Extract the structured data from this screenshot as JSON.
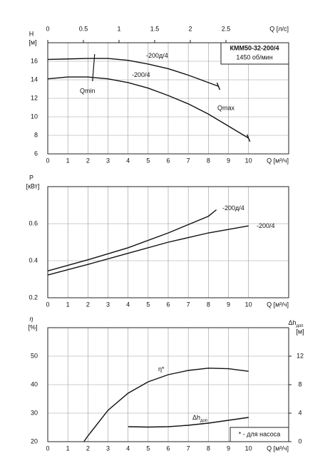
{
  "chart_data": [
    {
      "type": "line",
      "ylabel": "H",
      "yunit": "[м]",
      "xlabel": "Q [м³/ч]",
      "x2label": "Q [л/с]",
      "xlim": [
        0,
        12
      ],
      "xticks": [
        0,
        1,
        2,
        3,
        4,
        5,
        6,
        7,
        8,
        9,
        10
      ],
      "x2lim": [
        0,
        3.38
      ],
      "x2ticks": [
        0,
        0.5,
        1,
        1.5,
        2,
        2.5
      ],
      "ylim": [
        6,
        18
      ],
      "yticks": [
        6,
        8,
        10,
        12,
        14,
        16
      ],
      "grid": true,
      "model": "КММ50-32-200/4",
      "speed": "1450 об/мин",
      "markers": [
        {
          "label": "Qmin",
          "q": 2.3
        },
        {
          "label": "Qmax",
          "q": 10
        }
      ],
      "series": [
        {
          "name": "-200д/4",
          "color": "#111111",
          "x": [
            0,
            1,
            2,
            3,
            4,
            5,
            6,
            7,
            8,
            8.5
          ],
          "values": [
            16.2,
            16.25,
            16.3,
            16.3,
            16.1,
            15.7,
            15.2,
            14.5,
            13.7,
            13.3
          ]
        },
        {
          "name": "-200/4",
          "color": "#111111",
          "x": [
            0,
            1,
            2,
            3,
            4,
            5,
            6,
            7,
            8,
            9,
            10
          ],
          "values": [
            14.1,
            14.3,
            14.3,
            14.1,
            13.7,
            13.1,
            12.3,
            11.4,
            10.3,
            9.0,
            7.7
          ]
        }
      ]
    },
    {
      "type": "line",
      "ylabel": "P",
      "yunit": "[кВт]",
      "xlabel": "Q [м³/ч]",
      "xlim": [
        0,
        12
      ],
      "xticks": [
        0,
        1,
        2,
        3,
        4,
        5,
        6,
        7,
        8,
        9,
        10
      ],
      "ylim": [
        0.2,
        0.8
      ],
      "yticks": [
        0.2,
        0.4,
        0.6
      ],
      "grid": true,
      "series": [
        {
          "name": "-200д/4",
          "color": "#111111",
          "x": [
            0,
            2,
            4,
            6,
            8,
            8.4
          ],
          "values": [
            0.345,
            0.405,
            0.47,
            0.55,
            0.64,
            0.675
          ]
        },
        {
          "name": "-200/4",
          "color": "#111111",
          "x": [
            0,
            2,
            4,
            6,
            8,
            10
          ],
          "values": [
            0.323,
            0.38,
            0.44,
            0.5,
            0.55,
            0.588
          ]
        }
      ]
    },
    {
      "type": "line",
      "ylabel": "η",
      "yunit": "[%]",
      "y2label": "Δh",
      "y2label_sub": "доп",
      "y2unit": "[м]",
      "xlabel": "Q [м³/ч]",
      "xlim": [
        0,
        12
      ],
      "xticks": [
        0,
        1,
        2,
        3,
        4,
        5,
        6,
        7,
        8,
        9,
        10
      ],
      "ylim": [
        20,
        60
      ],
      "yticks": [
        20,
        30,
        40,
        50
      ],
      "y2lim": [
        0,
        16
      ],
      "y2ticks": [
        0,
        4,
        8,
        12
      ],
      "grid": true,
      "note": "* - для насоса",
      "series": [
        {
          "name": "η*",
          "color": "#111111",
          "x": [
            1.8,
            2,
            3,
            4,
            5,
            6,
            7,
            8,
            9,
            10
          ],
          "values": [
            20,
            22,
            31,
            37,
            41,
            43.5,
            45,
            45.8,
            45.6,
            44.7
          ]
        },
        {
          "name": "Δh",
          "name_sub": "доп",
          "axis": "y2",
          "color": "#111111",
          "x": [
            4,
            5,
            6,
            7,
            8,
            9,
            10
          ],
          "values": [
            2.1,
            2.05,
            2.1,
            2.3,
            2.6,
            3.0,
            3.4
          ]
        }
      ]
    }
  ]
}
